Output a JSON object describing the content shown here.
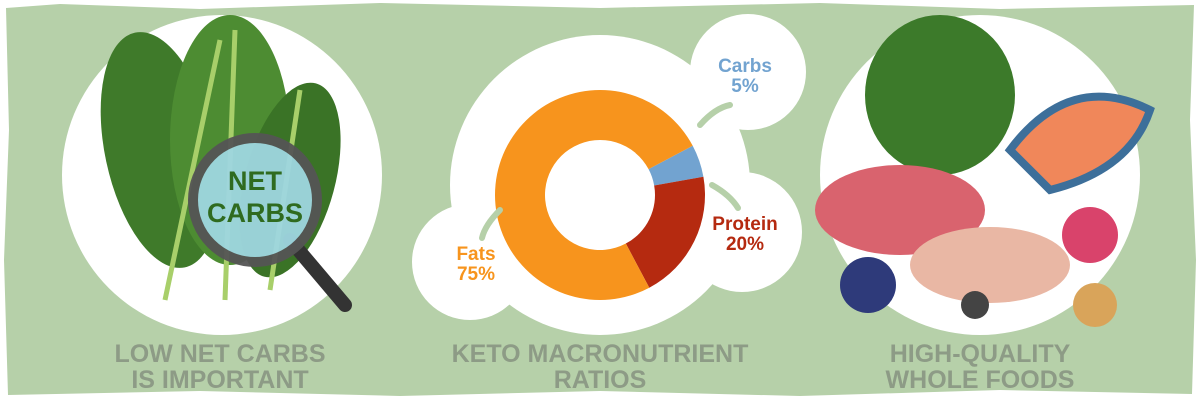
{
  "panels": [
    {
      "caption": [
        "LOW NET CARBS",
        "IS IMPORTANT"
      ],
      "badge": [
        "NET",
        "CARBS"
      ]
    },
    {
      "caption": [
        "KETO MACRONUTRIENT",
        "RATIOS"
      ]
    },
    {
      "caption": [
        "HIGH-QUALITY",
        "WHOLE FOODS"
      ]
    }
  ],
  "chart_data": {
    "type": "donut",
    "categories": [
      "Carbs",
      "Protein",
      "Fats"
    ],
    "values": [
      5,
      20,
      75
    ],
    "value_labels": [
      "5%",
      "20%",
      "75%"
    ],
    "colors": [
      "#72a3d0",
      "#b52a10",
      "#f7941d"
    ]
  }
}
